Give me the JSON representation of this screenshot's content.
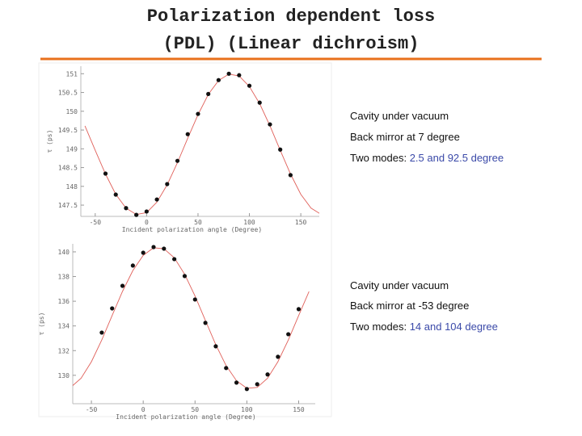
{
  "slide": {
    "title_line1": "Polarization dependent loss",
    "title_line2": "(PDL) (Linear dichroism)"
  },
  "notes": [
    {
      "line1": "Cavity under vacuum",
      "line2": "Back mirror at 7 degree",
      "line3_prefix": "Two modes: ",
      "line3_value": "2.5 and 92.5 degree"
    },
    {
      "line1": "Cavity under vacuum",
      "line2": "Back mirror at -53 degree",
      "line3_prefix": "Two modes: ",
      "line3_value": "14 and 104 degree"
    }
  ],
  "chart_data": [
    {
      "type": "scatter",
      "xlabel": "Incident polarization angle (Degree)",
      "ylabel": "τ (ps)",
      "x": [
        -40,
        -30,
        -20,
        -10,
        0,
        10,
        20,
        30,
        40,
        50,
        60,
        70,
        80,
        90,
        100,
        110,
        120,
        130,
        140
      ],
      "values": [
        148.34,
        147.78,
        147.42,
        147.24,
        147.33,
        147.65,
        148.06,
        148.68,
        149.39,
        149.93,
        150.46,
        150.83,
        151.0,
        150.96,
        150.68,
        150.23,
        149.65,
        148.98,
        148.3
      ],
      "color": "#111111",
      "curve": {
        "color": "#e0605a",
        "x": [
          -60,
          -50,
          -40,
          -30,
          -20,
          -10,
          0,
          10,
          20,
          30,
          40,
          50,
          60,
          70,
          80,
          90,
          100,
          110,
          120,
          130,
          140,
          150,
          160,
          170
        ],
        "values": [
          149.61,
          148.96,
          148.33,
          147.79,
          147.42,
          147.25,
          147.3,
          147.58,
          148.04,
          148.63,
          149.28,
          149.91,
          150.45,
          150.82,
          150.99,
          150.94,
          150.66,
          150.2,
          149.61,
          148.96,
          148.33,
          147.79,
          147.42,
          147.25
        ]
      },
      "xlim": [
        -64,
        168
      ],
      "xticks": [
        -50,
        0,
        50,
        100,
        150
      ],
      "ylim": [
        147.2,
        151.2
      ],
      "yticks": [
        147.5,
        148,
        148.5,
        149,
        149.5,
        150,
        150.5,
        151
      ]
    },
    {
      "type": "scatter",
      "xlabel": "Incident polarization angle (Degree)",
      "ylabel": "τ (ps)",
      "x": [
        -40,
        -30,
        -20,
        -10,
        0,
        10,
        20,
        30,
        40,
        50,
        60,
        70,
        80,
        90,
        100,
        110,
        120,
        130,
        140,
        150
      ],
      "values": [
        133.46,
        135.42,
        137.25,
        138.89,
        139.93,
        140.39,
        140.26,
        139.41,
        138.04,
        136.14,
        134.25,
        132.35,
        130.59,
        129.41,
        128.89,
        129.28,
        130.07,
        131.5,
        133.33,
        135.36
      ],
      "color": "#111111",
      "curve": {
        "color": "#e0605a",
        "x": [
          -70,
          -60,
          -50,
          -40,
          -30,
          -20,
          -10,
          0,
          10,
          20,
          30,
          40,
          50,
          60,
          70,
          80,
          90,
          100,
          110,
          120,
          130,
          140,
          150,
          160
        ],
        "values": [
          129.02,
          129.76,
          131.1,
          132.86,
          134.84,
          136.79,
          138.49,
          139.72,
          140.33,
          140.26,
          139.52,
          138.18,
          136.42,
          134.44,
          132.49,
          130.79,
          129.56,
          128.95,
          129.02,
          129.76,
          131.1,
          132.86,
          134.84,
          136.79
        ]
      },
      "xlim": [
        -68,
        166
      ],
      "xticks": [
        -50,
        0,
        50,
        100,
        150
      ],
      "ylim": [
        127.7,
        140.65
      ],
      "yticks": [
        130,
        132,
        134,
        136,
        138,
        140
      ]
    }
  ]
}
